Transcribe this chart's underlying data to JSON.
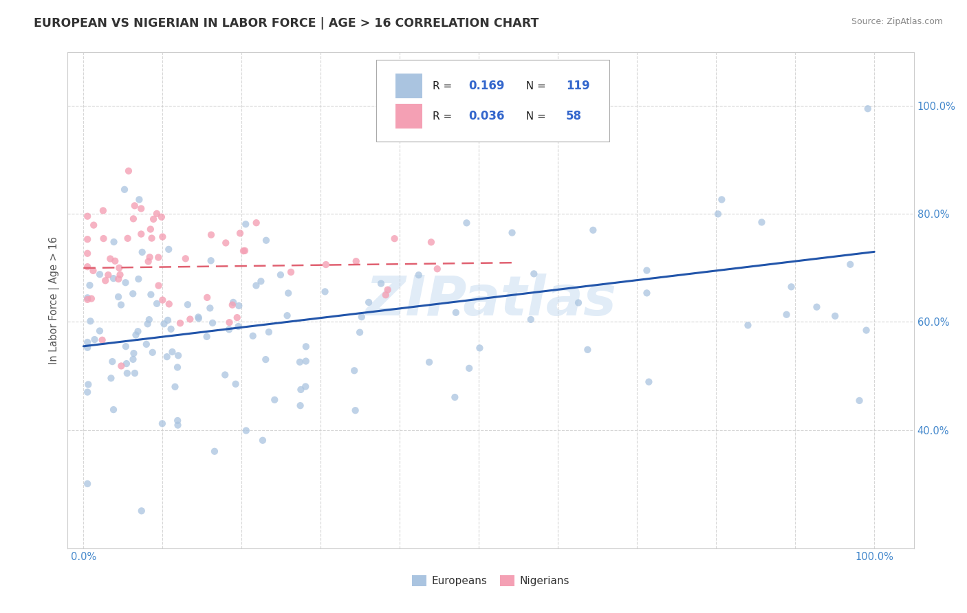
{
  "title": "EUROPEAN VS NIGERIAN IN LABOR FORCE | AGE > 16 CORRELATION CHART",
  "source": "Source: ZipAtlas.com",
  "ylabel": "In Labor Force | Age > 16",
  "legend_r_european": "0.169",
  "legend_n_european": "119",
  "legend_r_nigerian": "0.036",
  "legend_n_nigerian": "58",
  "european_color": "#aac4e0",
  "nigerian_color": "#f4a0b4",
  "european_line_color": "#2255aa",
  "nigerian_line_color": "#e06070",
  "watermark": "ZIPatlas",
  "title_color": "#333333",
  "source_color": "#888888",
  "tick_color": "#4488cc",
  "ylabel_color": "#555555",
  "grid_color": "#cccccc",
  "legend_text_color": "#222222",
  "legend_value_color": "#3366cc",
  "xlim": [
    -0.02,
    1.05
  ],
  "ylim": [
    0.18,
    1.1
  ],
  "x_ticks": [
    0.0,
    0.1,
    0.2,
    0.3,
    0.4,
    0.5,
    0.6,
    0.7,
    0.8,
    0.9,
    1.0
  ],
  "y_ticks": [
    0.4,
    0.6,
    0.8,
    1.0
  ],
  "eur_line_x0": 0.0,
  "eur_line_y0": 0.555,
  "eur_line_x1": 1.0,
  "eur_line_y1": 0.73,
  "nig_line_x0": 0.0,
  "nig_line_y0": 0.7,
  "nig_line_x1": 0.55,
  "nig_line_y1": 0.71
}
